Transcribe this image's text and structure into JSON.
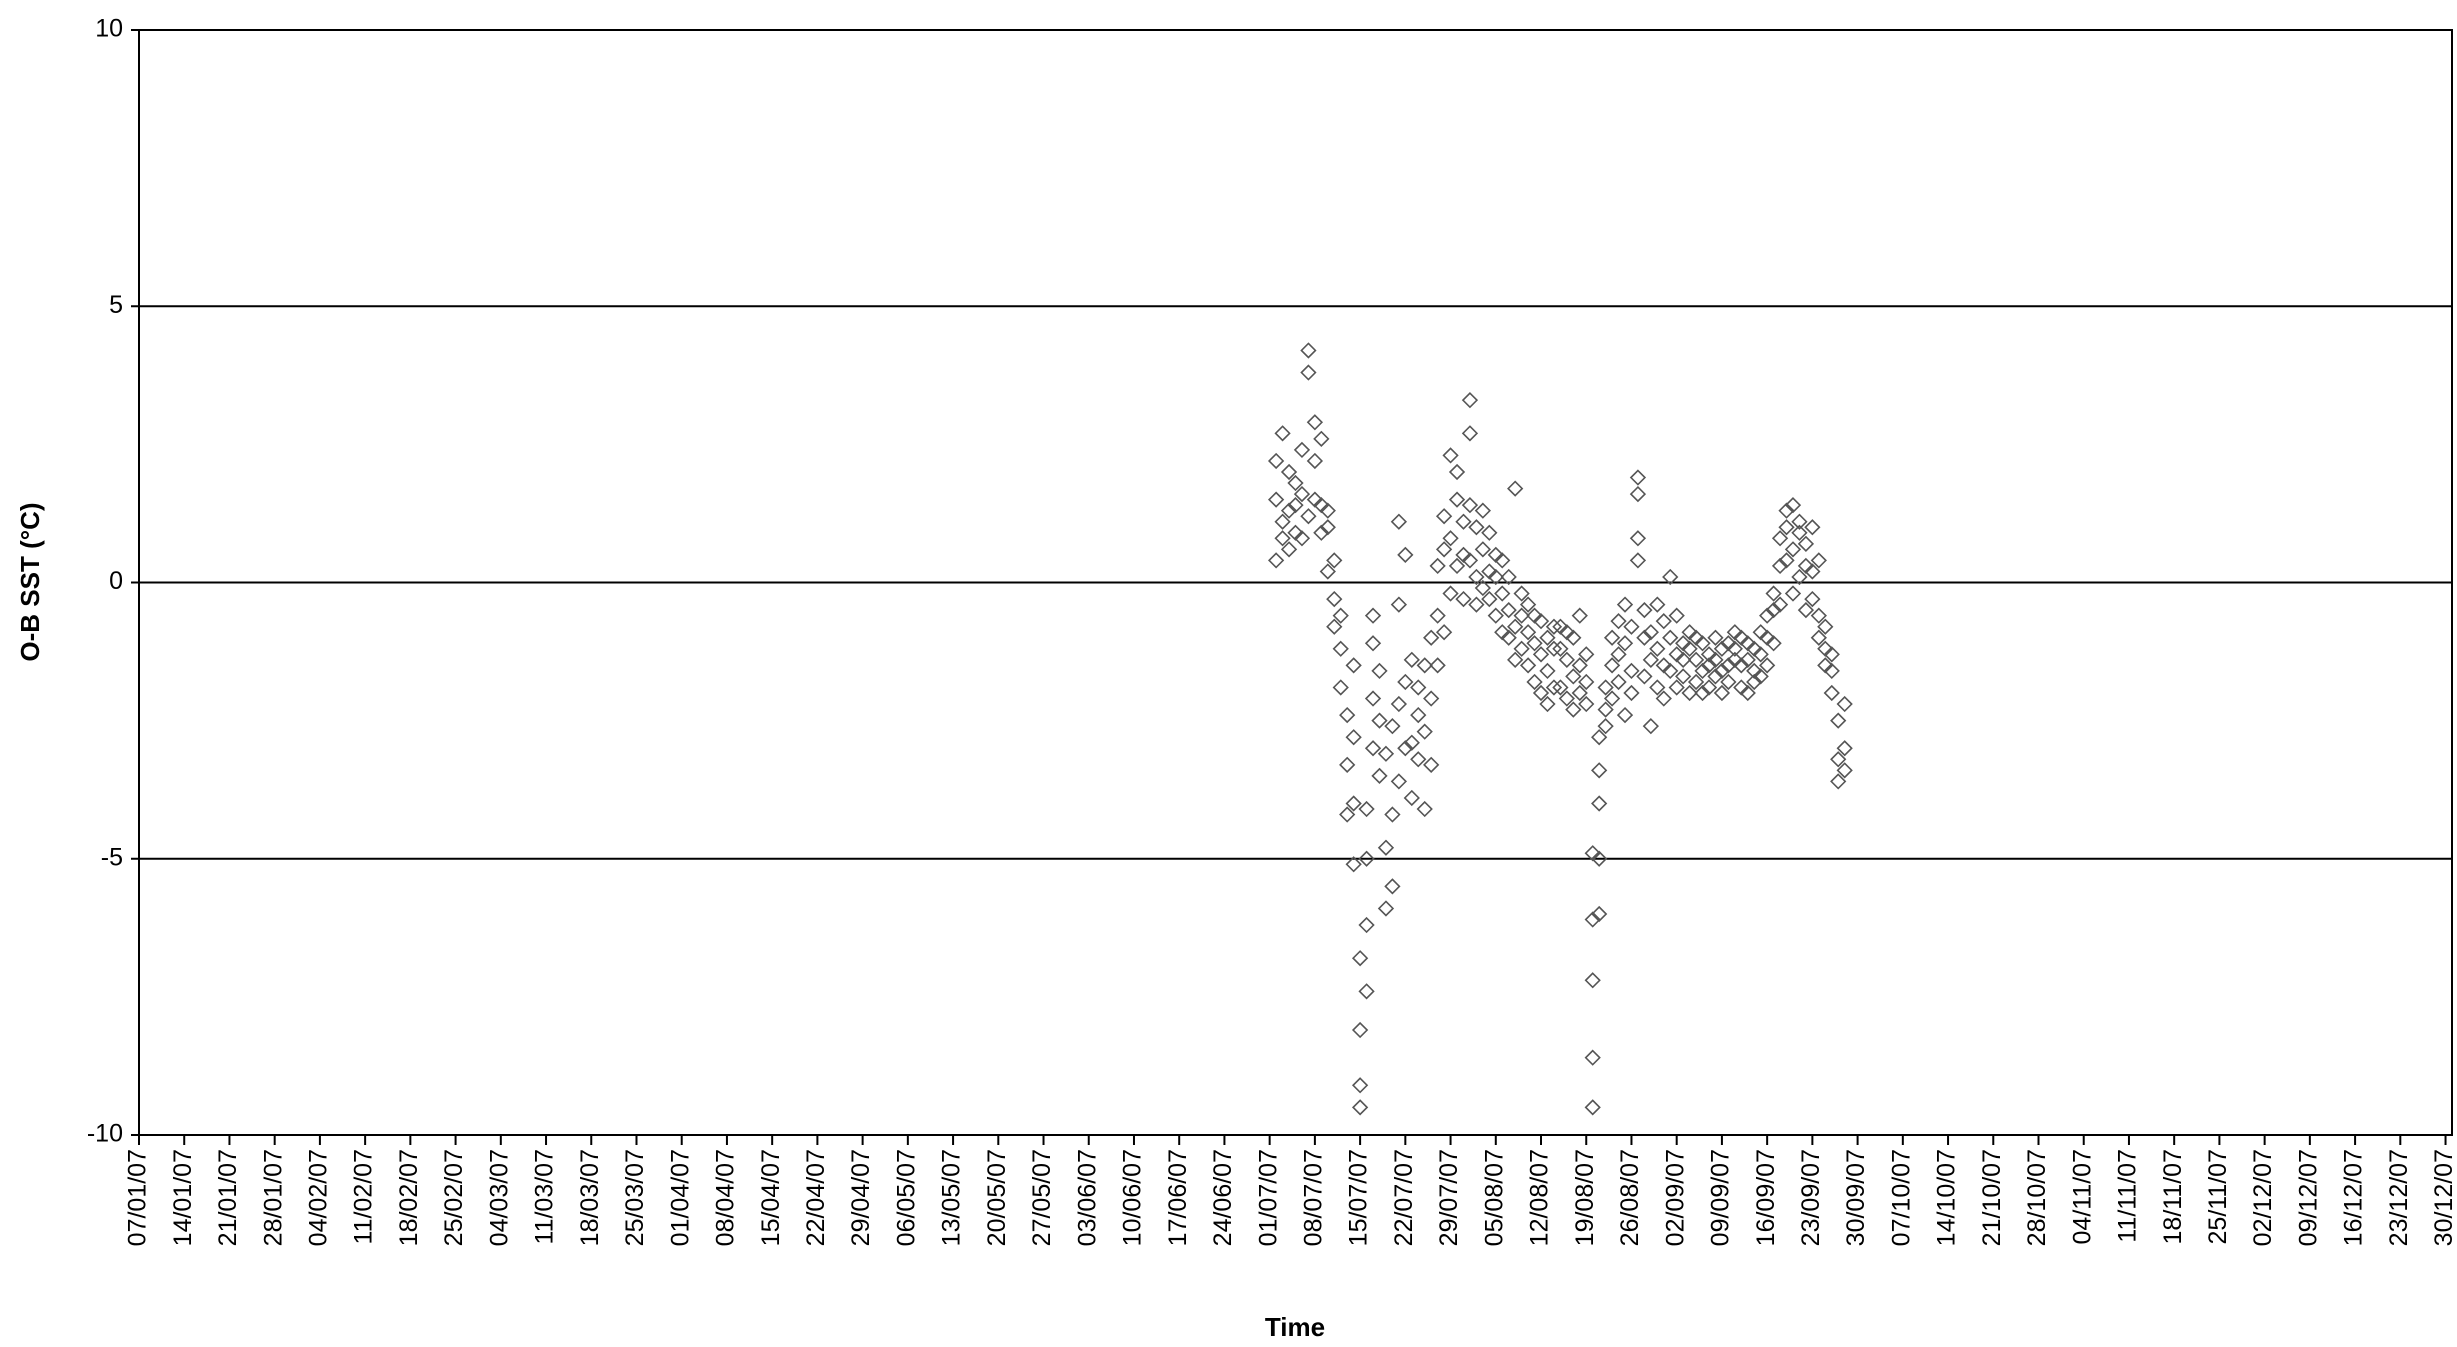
{
  "chart_data": {
    "type": "scatter",
    "y_label": "O-B SST (°C)",
    "x_label": "Time",
    "ylim": [
      -10,
      10
    ],
    "yticks": [
      -10,
      -5,
      0,
      5,
      10
    ],
    "grid": true,
    "xlim": [
      "2007-01-07",
      "2007-12-31"
    ],
    "xticks": [
      {
        "value": "2007-01-07",
        "label": "07/01/07"
      },
      {
        "value": "2007-01-14",
        "label": "14/01/07"
      },
      {
        "value": "2007-01-21",
        "label": "21/01/07"
      },
      {
        "value": "2007-01-28",
        "label": "28/01/07"
      },
      {
        "value": "2007-02-04",
        "label": "04/02/07"
      },
      {
        "value": "2007-02-11",
        "label": "11/02/07"
      },
      {
        "value": "2007-02-18",
        "label": "18/02/07"
      },
      {
        "value": "2007-02-25",
        "label": "25/02/07"
      },
      {
        "value": "2007-03-04",
        "label": "04/03/07"
      },
      {
        "value": "2007-03-11",
        "label": "11/03/07"
      },
      {
        "value": "2007-03-18",
        "label": "18/03/07"
      },
      {
        "value": "2007-03-25",
        "label": "25/03/07"
      },
      {
        "value": "2007-04-01",
        "label": "01/04/07"
      },
      {
        "value": "2007-04-08",
        "label": "08/04/07"
      },
      {
        "value": "2007-04-15",
        "label": "15/04/07"
      },
      {
        "value": "2007-04-22",
        "label": "22/04/07"
      },
      {
        "value": "2007-04-29",
        "label": "29/04/07"
      },
      {
        "value": "2007-05-06",
        "label": "06/05/07"
      },
      {
        "value": "2007-05-13",
        "label": "13/05/07"
      },
      {
        "value": "2007-05-20",
        "label": "20/05/07"
      },
      {
        "value": "2007-05-27",
        "label": "27/05/07"
      },
      {
        "value": "2007-06-03",
        "label": "03/06/07"
      },
      {
        "value": "2007-06-10",
        "label": "10/06/07"
      },
      {
        "value": "2007-06-17",
        "label": "17/06/07"
      },
      {
        "value": "2007-06-24",
        "label": "24/06/07"
      },
      {
        "value": "2007-07-01",
        "label": "01/07/07"
      },
      {
        "value": "2007-07-08",
        "label": "08/07/07"
      },
      {
        "value": "2007-07-15",
        "label": "15/07/07"
      },
      {
        "value": "2007-07-22",
        "label": "22/07/07"
      },
      {
        "value": "2007-07-29",
        "label": "29/07/07"
      },
      {
        "value": "2007-08-05",
        "label": "05/08/07"
      },
      {
        "value": "2007-08-12",
        "label": "12/08/07"
      },
      {
        "value": "2007-08-19",
        "label": "19/08/07"
      },
      {
        "value": "2007-08-26",
        "label": "26/08/07"
      },
      {
        "value": "2007-09-02",
        "label": "02/09/07"
      },
      {
        "value": "2007-09-09",
        "label": "09/09/07"
      },
      {
        "value": "2007-09-16",
        "label": "16/09/07"
      },
      {
        "value": "2007-09-23",
        "label": "23/09/07"
      },
      {
        "value": "2007-09-30",
        "label": "30/09/07"
      },
      {
        "value": "2007-10-07",
        "label": "07/10/07"
      },
      {
        "value": "2007-10-14",
        "label": "14/10/07"
      },
      {
        "value": "2007-10-21",
        "label": "21/10/07"
      },
      {
        "value": "2007-10-28",
        "label": "28/10/07"
      },
      {
        "value": "2007-11-04",
        "label": "04/11/07"
      },
      {
        "value": "2007-11-11",
        "label": "11/11/07"
      },
      {
        "value": "2007-11-18",
        "label": "18/11/07"
      },
      {
        "value": "2007-11-25",
        "label": "25/11/07"
      },
      {
        "value": "2007-12-02",
        "label": "02/12/07"
      },
      {
        "value": "2007-12-09",
        "label": "09/12/07"
      },
      {
        "value": "2007-12-16",
        "label": "16/12/07"
      },
      {
        "value": "2007-12-23",
        "label": "23/12/07"
      },
      {
        "value": "2007-12-30",
        "label": "30/12/07"
      }
    ],
    "color": "#555555",
    "x": [
      "2007-07-02",
      "2007-07-02",
      "2007-07-02",
      "2007-07-03",
      "2007-07-03",
      "2007-07-03",
      "2007-07-04",
      "2007-07-04",
      "2007-07-04",
      "2007-07-05",
      "2007-07-05",
      "2007-07-05",
      "2007-07-06",
      "2007-07-06",
      "2007-07-06",
      "2007-07-07",
      "2007-07-07",
      "2007-07-07",
      "2007-07-08",
      "2007-07-08",
      "2007-07-08",
      "2007-07-09",
      "2007-07-09",
      "2007-07-09",
      "2007-07-10",
      "2007-07-10",
      "2007-07-10",
      "2007-07-11",
      "2007-07-11",
      "2007-07-11",
      "2007-07-12",
      "2007-07-12",
      "2007-07-12",
      "2007-07-13",
      "2007-07-13",
      "2007-07-13",
      "2007-07-14",
      "2007-07-14",
      "2007-07-14",
      "2007-07-14",
      "2007-07-15",
      "2007-07-15",
      "2007-07-15",
      "2007-07-15",
      "2007-07-16",
      "2007-07-16",
      "2007-07-16",
      "2007-07-16",
      "2007-07-17",
      "2007-07-17",
      "2007-07-17",
      "2007-07-17",
      "2007-07-18",
      "2007-07-18",
      "2007-07-18",
      "2007-07-19",
      "2007-07-19",
      "2007-07-19",
      "2007-07-20",
      "2007-07-20",
      "2007-07-20",
      "2007-07-21",
      "2007-07-21",
      "2007-07-21",
      "2007-07-21",
      "2007-07-22",
      "2007-07-22",
      "2007-07-22",
      "2007-07-23",
      "2007-07-23",
      "2007-07-23",
      "2007-07-24",
      "2007-07-24",
      "2007-07-24",
      "2007-07-25",
      "2007-07-25",
      "2007-07-25",
      "2007-07-26",
      "2007-07-26",
      "2007-07-26",
      "2007-07-27",
      "2007-07-27",
      "2007-07-27",
      "2007-07-28",
      "2007-07-28",
      "2007-07-28",
      "2007-07-29",
      "2007-07-29",
      "2007-07-29",
      "2007-07-30",
      "2007-07-30",
      "2007-07-30",
      "2007-07-31",
      "2007-07-31",
      "2007-07-31",
      "2007-08-01",
      "2007-08-01",
      "2007-08-01",
      "2007-08-01",
      "2007-08-02",
      "2007-08-02",
      "2007-08-02",
      "2007-08-03",
      "2007-08-03",
      "2007-08-03",
      "2007-08-04",
      "2007-08-04",
      "2007-08-04",
      "2007-08-05",
      "2007-08-05",
      "2007-08-05",
      "2007-08-06",
      "2007-08-06",
      "2007-08-06",
      "2007-08-07",
      "2007-08-07",
      "2007-08-07",
      "2007-08-08",
      "2007-08-08",
      "2007-08-08",
      "2007-08-09",
      "2007-08-09",
      "2007-08-09",
      "2007-08-10",
      "2007-08-10",
      "2007-08-10",
      "2007-08-11",
      "2007-08-11",
      "2007-08-11",
      "2007-08-12",
      "2007-08-12",
      "2007-08-12",
      "2007-08-13",
      "2007-08-13",
      "2007-08-13",
      "2007-08-14",
      "2007-08-14",
      "2007-08-14",
      "2007-08-15",
      "2007-08-15",
      "2007-08-15",
      "2007-08-16",
      "2007-08-16",
      "2007-08-16",
      "2007-08-17",
      "2007-08-17",
      "2007-08-17",
      "2007-08-18",
      "2007-08-18",
      "2007-08-18",
      "2007-08-19",
      "2007-08-19",
      "2007-08-19",
      "2007-08-20",
      "2007-08-20",
      "2007-08-20",
      "2007-08-20",
      "2007-08-20",
      "2007-08-21",
      "2007-08-21",
      "2007-08-21",
      "2007-08-21",
      "2007-08-21",
      "2007-08-22",
      "2007-08-22",
      "2007-08-22",
      "2007-08-23",
      "2007-08-23",
      "2007-08-23",
      "2007-08-24",
      "2007-08-24",
      "2007-08-24",
      "2007-08-25",
      "2007-08-25",
      "2007-08-25",
      "2007-08-26",
      "2007-08-26",
      "2007-08-26",
      "2007-08-27",
      "2007-08-27",
      "2007-08-27",
      "2007-08-27",
      "2007-08-28",
      "2007-08-28",
      "2007-08-28",
      "2007-08-29",
      "2007-08-29",
      "2007-08-29",
      "2007-08-30",
      "2007-08-30",
      "2007-08-30",
      "2007-08-31",
      "2007-08-31",
      "2007-08-31",
      "2007-09-01",
      "2007-09-01",
      "2007-09-01",
      "2007-09-02",
      "2007-09-02",
      "2007-09-02",
      "2007-09-03",
      "2007-09-03",
      "2007-09-03",
      "2007-09-04",
      "2007-09-04",
      "2007-09-04",
      "2007-09-05",
      "2007-09-05",
      "2007-09-05",
      "2007-09-06",
      "2007-09-06",
      "2007-09-06",
      "2007-09-07",
      "2007-09-07",
      "2007-09-07",
      "2007-09-08",
      "2007-09-08",
      "2007-09-08",
      "2007-09-09",
      "2007-09-09",
      "2007-09-09",
      "2007-09-10",
      "2007-09-10",
      "2007-09-10",
      "2007-09-11",
      "2007-09-11",
      "2007-09-11",
      "2007-09-12",
      "2007-09-12",
      "2007-09-12",
      "2007-09-13",
      "2007-09-13",
      "2007-09-13",
      "2007-09-14",
      "2007-09-14",
      "2007-09-14",
      "2007-09-15",
      "2007-09-15",
      "2007-09-15",
      "2007-09-16",
      "2007-09-16",
      "2007-09-16",
      "2007-09-17",
      "2007-09-17",
      "2007-09-17",
      "2007-09-18",
      "2007-09-18",
      "2007-09-18",
      "2007-09-19",
      "2007-09-19",
      "2007-09-19",
      "2007-09-20",
      "2007-09-20",
      "2007-09-20",
      "2007-09-21",
      "2007-09-21",
      "2007-09-21",
      "2007-09-22",
      "2007-09-22",
      "2007-09-22",
      "2007-09-23",
      "2007-09-23",
      "2007-09-23",
      "2007-09-24",
      "2007-09-24",
      "2007-09-24",
      "2007-09-25",
      "2007-09-25",
      "2007-09-25",
      "2007-09-26",
      "2007-09-26",
      "2007-09-26",
      "2007-09-27",
      "2007-09-27",
      "2007-09-27",
      "2007-09-28",
      "2007-09-28",
      "2007-09-28"
    ],
    "values": [
      0.4,
      1.5,
      2.2,
      0.8,
      2.7,
      1.1,
      1.3,
      0.6,
      2.0,
      0.9,
      1.8,
      1.4,
      1.6,
      2.4,
      0.8,
      4.2,
      3.8,
      1.2,
      2.9,
      2.2,
      1.5,
      1.4,
      0.9,
      2.6,
      1.0,
      0.2,
      1.3,
      -0.3,
      0.4,
      -0.8,
      -1.2,
      -0.6,
      -1.9,
      -2.4,
      -3.3,
      -4.2,
      -5.1,
      -4.0,
      -2.8,
      -1.5,
      -9.1,
      -9.5,
      -8.1,
      -6.8,
      -6.2,
      -5.0,
      -7.4,
      -4.1,
      -3.0,
      -2.1,
      -1.1,
      -0.6,
      -2.5,
      -3.5,
      -1.6,
      -4.8,
      -5.9,
      -3.1,
      -5.5,
      -2.6,
      -4.2,
      1.1,
      -0.4,
      -2.2,
      -3.6,
      -1.8,
      -3.0,
      0.5,
      -2.9,
      -3.9,
      -1.4,
      -2.4,
      -3.2,
      -1.9,
      -4.1,
      -2.7,
      -1.5,
      -3.3,
      -2.1,
      -1.0,
      -1.5,
      -0.6,
      0.3,
      -0.9,
      0.6,
      1.2,
      2.3,
      0.8,
      -0.2,
      1.5,
      0.3,
      2.0,
      0.5,
      1.1,
      -0.3,
      3.3,
      2.7,
      1.4,
      0.4,
      1.0,
      0.1,
      -0.4,
      0.6,
      -0.1,
      1.3,
      -0.3,
      0.2,
      0.9,
      0.1,
      -0.6,
      0.5,
      -0.2,
      -0.9,
      0.4,
      -0.5,
      0.1,
      -1.0,
      1.7,
      -0.8,
      -1.4,
      -0.6,
      -1.2,
      -0.2,
      -1.5,
      -0.9,
      -0.4,
      -1.1,
      -1.8,
      -0.6,
      -1.3,
      -0.7,
      -2.0,
      -1.6,
      -1.0,
      -2.2,
      -1.9,
      -1.2,
      -0.8,
      -1.9,
      -1.2,
      -0.8,
      -1.4,
      -2.1,
      -0.9,
      -1.7,
      -1.0,
      -2.3,
      -2.0,
      -1.5,
      -0.6,
      -1.3,
      -2.2,
      -1.8,
      -9.5,
      -8.6,
      -7.2,
      -6.1,
      -4.9,
      -3.4,
      -4.0,
      -6.0,
      -5.0,
      -2.8,
      -2.3,
      -1.9,
      -2.6,
      -2.1,
      -1.5,
      -1.0,
      -1.8,
      -0.7,
      -1.3,
      -2.4,
      -1.1,
      -0.4,
      -1.6,
      -0.8,
      -2.0,
      1.9,
      1.6,
      0.8,
      0.4,
      -1.0,
      -1.7,
      -0.5,
      -2.6,
      -1.4,
      -0.9,
      -1.2,
      -0.4,
      -1.9,
      -1.5,
      -2.1,
      -0.7,
      0.1,
      -1.0,
      -1.6,
      -1.3,
      -1.9,
      -0.6,
      -1.1,
      -1.7,
      -1.4,
      -2.0,
      -1.2,
      -0.9,
      -1.4,
      -1.8,
      -1.0,
      -1.6,
      -1.1,
      -2.0,
      -1.3,
      -1.9,
      -1.5,
      -1.7,
      -1.0,
      -1.4,
      -1.2,
      -2.0,
      -1.6,
      -1.5,
      -1.1,
      -1.8,
      -0.9,
      -1.4,
      -1.2,
      -1.5,
      -1.0,
      -1.9,
      -1.4,
      -2.0,
      -1.1,
      -1.6,
      -1.2,
      -1.8,
      -1.3,
      -1.7,
      -0.9,
      -1.0,
      -1.5,
      -0.6,
      -0.5,
      -1.1,
      -0.2,
      0.3,
      -0.4,
      0.8,
      1.0,
      0.4,
      1.3,
      1.4,
      0.6,
      -0.2,
      0.9,
      0.1,
      1.1,
      0.3,
      -0.5,
      0.7,
      -0.3,
      0.2,
      1.0,
      -0.6,
      -1.0,
      0.4,
      -1.2,
      -0.8,
      -1.5,
      -1.6,
      -1.3,
      -2.0,
      -2.5,
      -3.2,
      -3.6,
      -3.0,
      -2.2,
      -3.4
    ]
  }
}
